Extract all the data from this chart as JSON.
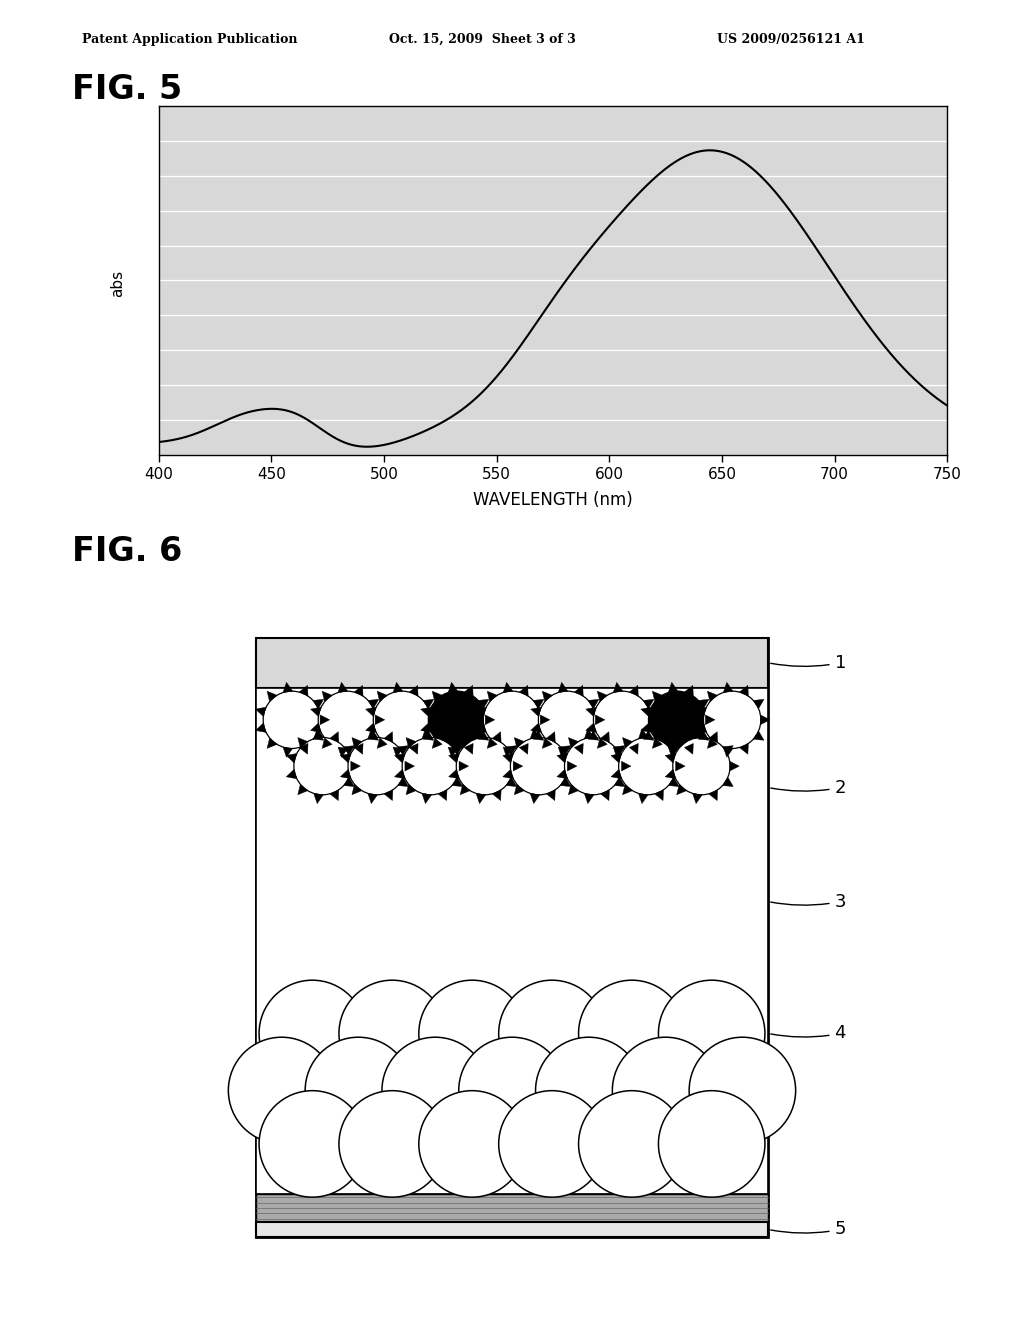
{
  "bg_color": "#ffffff",
  "header_text": "Patent Application Publication",
  "header_date": "Oct. 15, 2009  Sheet 3 of 3",
  "header_patent": "US 2009/0256121 A1",
  "fig5_label": "FIG. 5",
  "fig6_label": "FIG. 6",
  "xlabel": "WAVELENGTH (nm)",
  "ylabel": "abs",
  "xticks": [
    400,
    450,
    500,
    550,
    600,
    650,
    700,
    750
  ],
  "xmin": 400,
  "xmax": 750,
  "plot_bg": "#d8d8d8",
  "curve_color": "#000000",
  "grid_color": "#ffffff"
}
